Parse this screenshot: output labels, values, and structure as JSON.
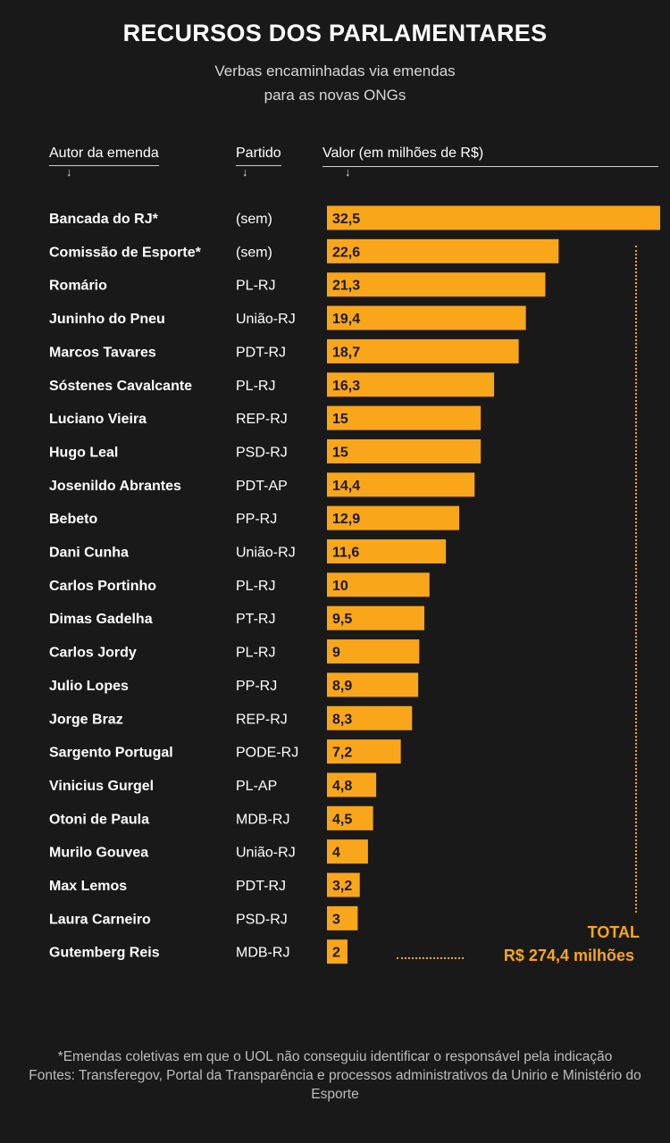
{
  "header": {
    "title": "RECURSOS DOS PARLAMENTARES",
    "subtitle_line1": "Verbas encaminhadas via emendas",
    "subtitle_line2": "para as novas ONGs"
  },
  "columns": {
    "author": "Autor da emenda",
    "party": "Partido",
    "value": "Valor (em milhões de R$)",
    "arrow": "↓"
  },
  "total": {
    "label": "TOTAL",
    "value": "R$ 274,4 milhões"
  },
  "footnote": {
    "note": "*Emendas coletivas em que o UOL não conseguiu identificar o responsável pela indicação",
    "sources": "Fontes: Transferegov, Portal da Transparência e processos administrativos da Unirio e Ministério do Esporte"
  },
  "colors": {
    "bar": "#f9a61a",
    "background": "#1a1919"
  },
  "chart_data": {
    "type": "bar",
    "orientation": "horizontal",
    "categories": [
      "Bancada do RJ*",
      "Comissão de Esporte*",
      "Romário",
      "Juninho do Pneu",
      "Marcos Tavares",
      "Sóstenes Cavalcante",
      "Luciano Vieira",
      "Hugo Leal",
      "Josenildo Abrantes",
      "Bebeto",
      "Dani Cunha",
      "Carlos Portinho",
      "Dimas Gadelha",
      "Carlos Jordy",
      "Julio Lopes",
      "Jorge Braz",
      "Sargento Portugal",
      "Vinicius Gurgel",
      "Otoni de Paula",
      "Murilo Gouvea",
      "Max Lemos",
      "Laura Carneiro",
      "Gutemberg Reis"
    ],
    "parties": [
      "(sem)",
      "(sem)",
      "PL-RJ",
      "União-RJ",
      "PDT-RJ",
      "PL-RJ",
      "REP-RJ",
      "PSD-RJ",
      "PDT-AP",
      "PP-RJ",
      "União-RJ",
      "PL-RJ",
      "PT-RJ",
      "PL-RJ",
      "PP-RJ",
      "REP-RJ",
      "PODE-RJ",
      "PL-AP",
      "MDB-RJ",
      "União-RJ",
      "PDT-RJ",
      "PSD-RJ",
      "MDB-RJ"
    ],
    "values": [
      32.5,
      22.6,
      21.3,
      19.4,
      18.7,
      16.3,
      15,
      15,
      14.4,
      12.9,
      11.6,
      10,
      9.5,
      9,
      8.9,
      8.3,
      7.2,
      4.8,
      4.5,
      4,
      3.2,
      3,
      2
    ],
    "value_labels": [
      "32,5",
      "22,6",
      "21,3",
      "19,4",
      "18,7",
      "16,3",
      "15",
      "15",
      "14,4",
      "12,9",
      "11,6",
      "10",
      "9,5",
      "9",
      "8,9",
      "8,3",
      "7,2",
      "4,8",
      "4,5",
      "4",
      "3,2",
      "3",
      "2"
    ],
    "xlim": [
      0,
      32.5
    ],
    "grid": false,
    "legend": "none"
  }
}
